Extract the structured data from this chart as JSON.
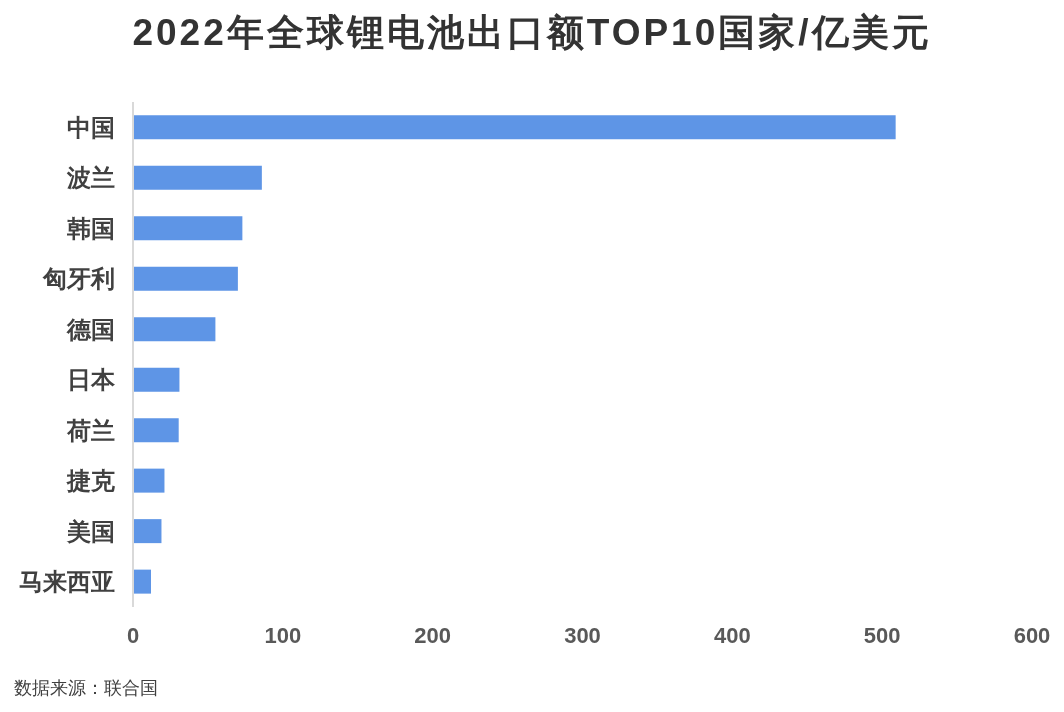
{
  "chart_data": {
    "type": "bar",
    "orientation": "horizontal",
    "title": "2022年全球锂电池出口额TOP10国家/亿美元",
    "categories": [
      "中国",
      "波兰",
      "韩国",
      "匈牙利",
      "德国",
      "日本",
      "荷兰",
      "捷克",
      "美国",
      "马来西亚"
    ],
    "values": [
      509,
      86,
      73,
      70,
      55,
      31,
      30.5,
      21,
      19,
      12
    ],
    "color": "#5e95e6",
    "xlim": [
      0,
      600
    ],
    "xticks": [
      0,
      100,
      200,
      300,
      400,
      500,
      600
    ],
    "annotations": [
      "数据来源：联合国"
    ]
  }
}
